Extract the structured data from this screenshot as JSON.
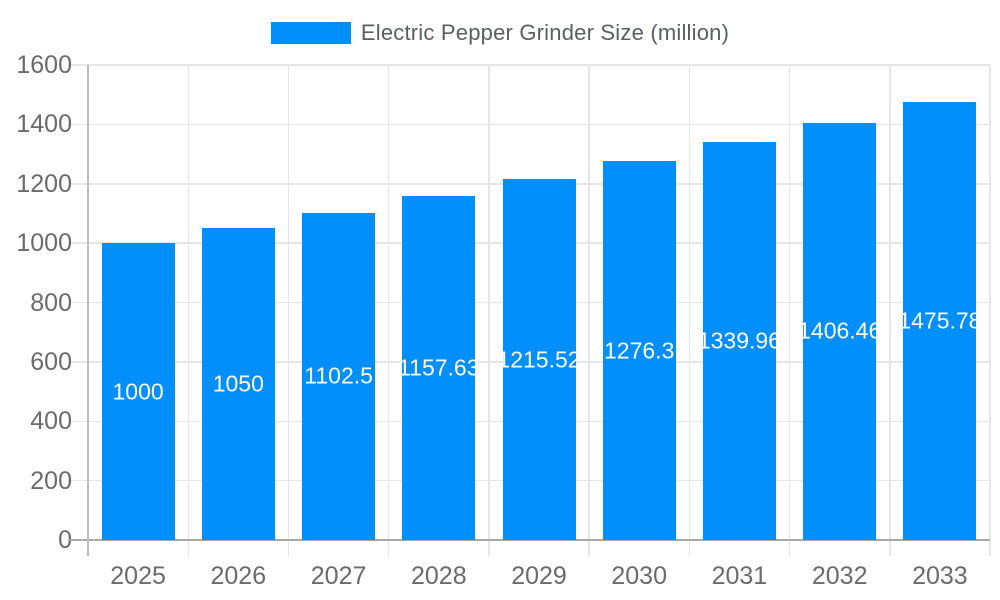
{
  "chart_data": {
    "type": "bar",
    "title": "Electric Pepper Grinder Size (million)",
    "categories": [
      "2025",
      "2026",
      "2027",
      "2028",
      "2029",
      "2030",
      "2031",
      "2032",
      "2033"
    ],
    "values": [
      1000,
      1050,
      1102.5,
      1157.63,
      1215.52,
      1276.3,
      1339.96,
      1406.46,
      1475.78
    ],
    "value_labels": [
      "1000",
      "1050",
      "1102.5",
      "1157.63",
      "1215.52",
      "1276.3",
      "1339.96",
      "1406.46",
      "1475.78"
    ],
    "xlabel": "",
    "ylabel": "",
    "ylim": [
      0,
      1600
    ],
    "ytick_step": 200,
    "ytick_labels": [
      "0",
      "200",
      "400",
      "600",
      "800",
      "1000",
      "1200",
      "1400",
      "1600"
    ],
    "grid": "on",
    "legend_position": "top",
    "colors": {
      "bar": "#008FFB",
      "grid": "#e6e6e6",
      "axis_line": "#a8a8a8",
      "y_axis_line": "#bdbdbd",
      "tick_label": "#6b6b6b",
      "legend_label": "#5a5f63",
      "data_label": "#ffffff",
      "background": "#ffffff"
    }
  }
}
